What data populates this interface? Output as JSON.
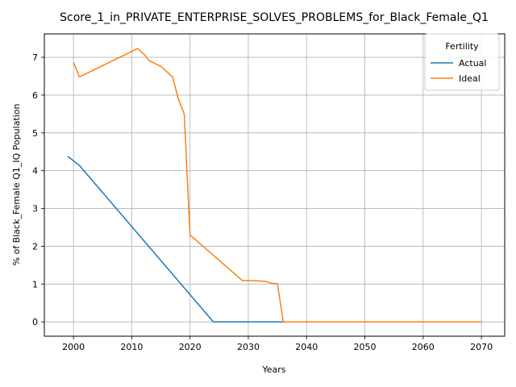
{
  "chart_data": {
    "type": "line",
    "title": "Score_1_in_PRIVATE_ENTERPRISE_SOLVES_PROBLEMS_for_Black_Female_Q1",
    "xlabel": "Years",
    "ylabel": "% of Black_Female Q1_IQ Population",
    "xlim": [
      1995,
      2074
    ],
    "ylim": [
      -0.38,
      7.62
    ],
    "xticks": [
      2000,
      2010,
      2020,
      2030,
      2040,
      2050,
      2060,
      2070
    ],
    "yticks": [
      0,
      1,
      2,
      3,
      4,
      5,
      6,
      7
    ],
    "grid": true,
    "legend": {
      "title": "Fertility",
      "position": "top-right"
    },
    "series": [
      {
        "name": "Actual",
        "color": "#1f77b4",
        "points": [
          [
            1999,
            4.38
          ],
          [
            2001,
            4.14
          ],
          [
            2024,
            0.0
          ],
          [
            2070,
            0.0
          ]
        ]
      },
      {
        "name": "Ideal",
        "color": "#ff7f0e",
        "points": [
          [
            2000,
            6.87
          ],
          [
            2001,
            6.48
          ],
          [
            2011,
            7.23
          ],
          [
            2012,
            7.1
          ],
          [
            2013,
            6.91
          ],
          [
            2015,
            6.76
          ],
          [
            2017,
            6.48
          ],
          [
            2018,
            5.9
          ],
          [
            2019,
            5.5
          ],
          [
            2020,
            2.3
          ],
          [
            2029,
            1.09
          ],
          [
            2031,
            1.09
          ],
          [
            2033,
            1.07
          ],
          [
            2034,
            1.02
          ],
          [
            2035,
            1.01
          ],
          [
            2036,
            0.0
          ],
          [
            2070,
            0.0
          ]
        ]
      }
    ]
  }
}
